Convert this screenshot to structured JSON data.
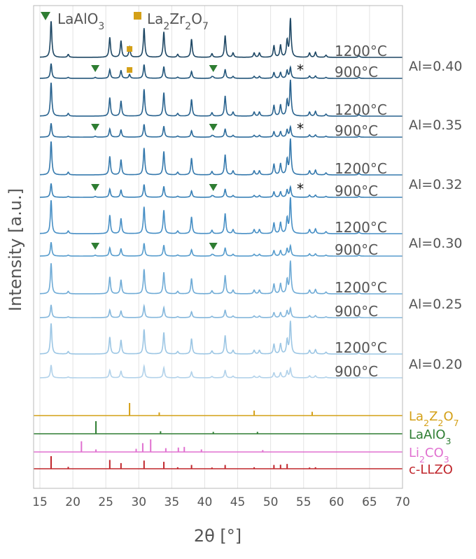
{
  "chart_data": {
    "type": "line",
    "title": "",
    "xlabel": "2θ [°]",
    "ylabel": "Intensity [a.u.]",
    "xlim": [
      15,
      70
    ],
    "x_ticks": [
      15,
      20,
      25,
      30,
      35,
      40,
      45,
      50,
      55,
      60,
      65,
      70
    ],
    "grid": true,
    "legend": {
      "placement": "top-left",
      "entries": [
        {
          "marker": "▼",
          "label": "LaAlO3",
          "label_base": "LaAlO",
          "label_sub": "3",
          "color": "#2e7d32"
        },
        {
          "marker": "■",
          "label": "La2Zr2O7",
          "label_parts": [
            "La",
            "2",
            "Zr",
            "2",
            "O",
            "7"
          ],
          "color": "#d4a017"
        }
      ]
    },
    "peak_positions_2theta": [
      16.7,
      19.3,
      25.6,
      27.3,
      30.8,
      33.8,
      35.9,
      38.0,
      41.1,
      43.1,
      44.3,
      47.5,
      48.3,
      50.5,
      51.5,
      52.5,
      53.0,
      55.9,
      56.8,
      58.4,
      63.4
    ],
    "groups": [
      {
        "label": "Al=0.40",
        "series": [
          {
            "temperature": "1200°C",
            "color": "#1e4764",
            "impurities": [
              "La2Zr2O7"
            ]
          },
          {
            "temperature": "900°C",
            "color": "#22557a",
            "impurities": [
              "LaAlO3",
              "La2Zr2O7",
              "*"
            ]
          }
        ]
      },
      {
        "label": "Al=0.35",
        "series": [
          {
            "temperature": "1200°C",
            "color": "#28628e",
            "impurities": []
          },
          {
            "temperature": "900°C",
            "color": "#2d6c9c",
            "impurities": [
              "LaAlO3",
              "*"
            ]
          }
        ]
      },
      {
        "label": "Al=0.32",
        "series": [
          {
            "temperature": "1200°C",
            "color": "#3579ad",
            "impurities": []
          },
          {
            "temperature": "900°C",
            "color": "#3a82b8",
            "impurities": [
              "LaAlO3",
              "*"
            ]
          }
        ]
      },
      {
        "label": "Al=0.30",
        "series": [
          {
            "temperature": "1200°C",
            "color": "#478fc5",
            "impurities": []
          },
          {
            "temperature": "900°C",
            "color": "#569ccd",
            "impurities": [
              "LaAlO3"
            ]
          }
        ]
      },
      {
        "label": "Al=0.25",
        "series": [
          {
            "temperature": "1200°C",
            "color": "#6fabd6",
            "impurities": []
          },
          {
            "temperature": "900°C",
            "color": "#84b7dc",
            "impurities": []
          }
        ]
      },
      {
        "label": "Al=0.20",
        "series": [
          {
            "temperature": "1200°C",
            "color": "#9cc6e4",
            "impurities": []
          },
          {
            "temperature": "900°C",
            "color": "#b2d2ea",
            "impurities": []
          }
        ]
      }
    ],
    "markers": {
      "LaAlO3_2theta": [
        23.4,
        41.3
      ],
      "La2Zr2O7_2theta": [
        28.6
      ],
      "star_2theta": 54.5,
      "star_label": "*"
    },
    "references": [
      {
        "label": "La2Z2O7",
        "label_parts": [
          "La",
          "2",
          "Z",
          "2",
          "O",
          "7"
        ],
        "color": "#d4a017",
        "peaks": [
          [
            28.6,
            1.0
          ],
          [
            33.1,
            0.25
          ],
          [
            47.5,
            0.4
          ],
          [
            56.3,
            0.3
          ]
        ]
      },
      {
        "label": "LaAlO3",
        "label_parts": [
          "LaAlO",
          "3"
        ],
        "color": "#2e7d32",
        "peaks": [
          [
            23.5,
            1.0
          ],
          [
            33.3,
            0.2
          ],
          [
            41.3,
            0.15
          ],
          [
            48.0,
            0.15
          ]
        ]
      },
      {
        "label": "Li2CO3",
        "label_parts": [
          "Li",
          "2",
          "CO",
          "3"
        ],
        "color": "#e070d0",
        "peaks": [
          [
            21.3,
            0.85
          ],
          [
            23.5,
            0.2
          ],
          [
            29.6,
            0.25
          ],
          [
            30.6,
            0.7
          ],
          [
            31.8,
            1.0
          ],
          [
            34.1,
            0.3
          ],
          [
            36.0,
            0.35
          ],
          [
            36.9,
            0.4
          ],
          [
            39.5,
            0.2
          ],
          [
            48.8,
            0.15
          ]
        ]
      },
      {
        "label": "c-LLZO",
        "label_parts": [
          "c-LLZO"
        ],
        "color": "#c0262c",
        "peaks": [
          [
            16.7,
            1.0
          ],
          [
            19.3,
            0.15
          ],
          [
            25.6,
            0.7
          ],
          [
            27.3,
            0.45
          ],
          [
            30.8,
            0.65
          ],
          [
            33.8,
            0.55
          ],
          [
            35.9,
            0.12
          ],
          [
            38.0,
            0.3
          ],
          [
            41.1,
            0.1
          ],
          [
            43.1,
            0.3
          ],
          [
            47.5,
            0.12
          ],
          [
            50.5,
            0.3
          ],
          [
            51.5,
            0.32
          ],
          [
            52.5,
            0.38
          ],
          [
            55.9,
            0.1
          ],
          [
            56.8,
            0.12
          ]
        ]
      }
    ]
  }
}
